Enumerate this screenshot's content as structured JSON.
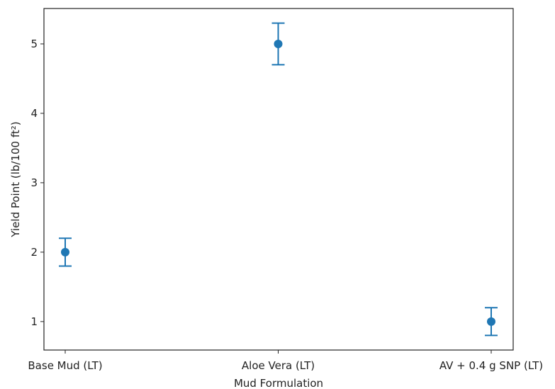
{
  "chart_data": {
    "type": "scatter",
    "categories": [
      "Base Mud (LT)",
      "Aloe Vera (LT)",
      "AV + 0.4 g SNP (LT)"
    ],
    "values": [
      2,
      5,
      1
    ],
    "errors": [
      0.2,
      0.3,
      0.2
    ],
    "xlabel": "Mud Formulation",
    "ylabel": "Yield Point (lb/100 ft²)",
    "yticks": [
      1,
      2,
      3,
      4,
      5
    ],
    "ylim": [
      0.59,
      5.51
    ],
    "grid": false,
    "color": "#1f77b4"
  }
}
